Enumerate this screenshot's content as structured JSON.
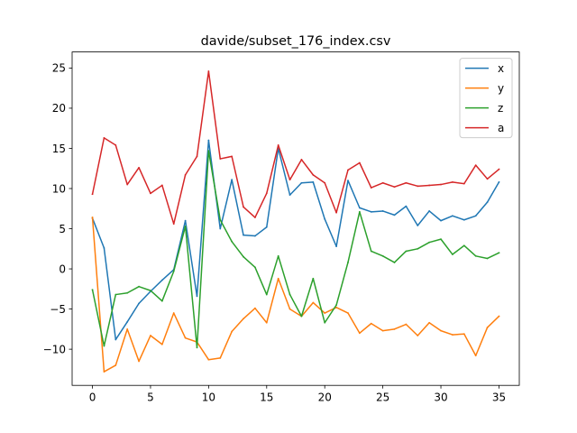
{
  "chart_data": {
    "type": "line",
    "title": "davide/subset_176_index.csv",
    "xlabel": "",
    "ylabel": "",
    "xlim": [
      -1.75,
      36.75
    ],
    "ylim": [
      -14.5,
      27.0
    ],
    "xticks": [
      0,
      5,
      10,
      15,
      20,
      25,
      30,
      35
    ],
    "yticks": [
      -10,
      -5,
      0,
      5,
      10,
      15,
      20,
      25
    ],
    "grid": false,
    "legend_position": "top-right",
    "x": [
      0,
      1,
      2,
      3,
      4,
      5,
      6,
      7,
      8,
      9,
      10,
      11,
      12,
      13,
      14,
      15,
      16,
      17,
      18,
      19,
      20,
      21,
      22,
      23,
      24,
      25,
      26,
      27,
      28,
      29,
      30,
      31,
      32,
      33,
      34,
      35
    ],
    "series": [
      {
        "name": "x",
        "color": "#1f77b4",
        "values": [
          6.3,
          2.6,
          -8.8,
          -6.6,
          -4.3,
          -2.8,
          -1.4,
          -0.1,
          6.0,
          -3.4,
          16.0,
          5.0,
          11.1,
          4.2,
          4.1,
          5.2,
          15.0,
          9.2,
          10.7,
          10.8,
          6.2,
          2.8,
          11.0,
          7.6,
          7.1,
          7.2,
          6.7,
          7.8,
          5.4,
          7.2,
          6.0,
          6.6,
          6.1,
          6.6,
          8.3,
          10.8
        ]
      },
      {
        "name": "y",
        "color": "#ff7f0e",
        "values": [
          6.4,
          -12.8,
          -12.0,
          -7.5,
          -11.5,
          -8.3,
          -9.4,
          -5.5,
          -8.6,
          -9.1,
          -11.3,
          -11.1,
          -7.8,
          -6.2,
          -4.9,
          -6.7,
          -1.2,
          -5.0,
          -5.9,
          -4.2,
          -5.5,
          -4.8,
          -5.5,
          -8.0,
          -6.8,
          -7.7,
          -7.5,
          -6.9,
          -8.3,
          -6.7,
          -7.7,
          -8.2,
          -8.1,
          -10.8,
          -7.3,
          -5.9
        ]
      },
      {
        "name": "z",
        "color": "#2ca02c",
        "values": [
          -2.6,
          -9.6,
          -3.2,
          -3.0,
          -2.2,
          -2.7,
          -4.0,
          -0.3,
          5.3,
          -9.8,
          14.7,
          6.1,
          3.4,
          1.5,
          0.2,
          -3.2,
          1.6,
          -3.2,
          -5.9,
          -1.2,
          -6.7,
          -4.5,
          0.8,
          7.1,
          2.2,
          1.6,
          0.8,
          2.2,
          2.5,
          3.3,
          3.7,
          1.8,
          2.9,
          1.6,
          1.3,
          2.0
        ]
      },
      {
        "name": "a",
        "color": "#d62728",
        "values": [
          9.3,
          16.3,
          15.4,
          10.5,
          12.6,
          9.4,
          10.4,
          5.6,
          11.7,
          14.0,
          24.6,
          13.7,
          14.0,
          7.7,
          6.4,
          9.4,
          15.4,
          11.1,
          13.6,
          11.7,
          10.7,
          7.0,
          12.3,
          13.2,
          10.1,
          10.7,
          10.2,
          10.7,
          10.3,
          10.4,
          10.5,
          10.8,
          10.6,
          12.9,
          11.2,
          12.4
        ]
      }
    ]
  }
}
